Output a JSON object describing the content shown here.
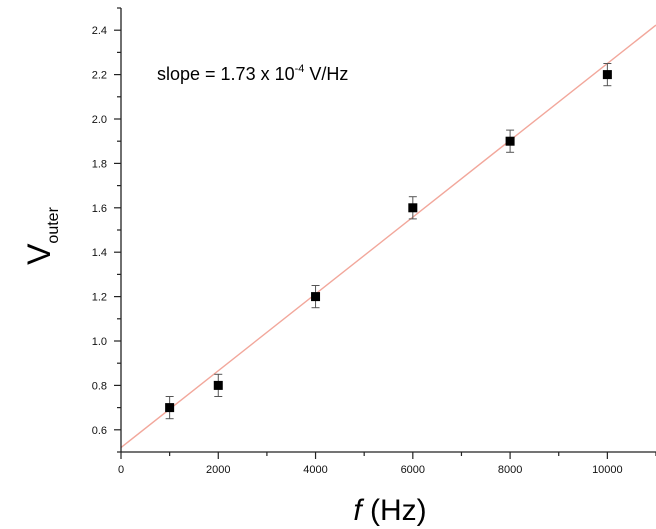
{
  "chart_data": {
    "type": "scatter",
    "x": [
      1000,
      2000,
      4000,
      6000,
      8000,
      10000
    ],
    "y": [
      0.7,
      0.8,
      1.2,
      1.6,
      1.9,
      2.2
    ],
    "y_error": [
      0.05,
      0.05,
      0.05,
      0.05,
      0.05,
      0.05
    ],
    "fit": {
      "slope": 0.000173,
      "intercept": 0.52
    },
    "annotation": {
      "text_main": "slope = 1.73 x 10",
      "superscript": "-4",
      "unit": " V/Hz"
    },
    "ylabel": {
      "main": "V",
      "sub": "outer"
    },
    "xlabel": {
      "italic": "f",
      "rest": " (Hz)"
    },
    "xlim": [
      0,
      11000
    ],
    "ylim": [
      0.5,
      2.5
    ],
    "xticks": [
      0,
      2000,
      4000,
      6000,
      8000,
      10000
    ],
    "xtick_labels": [
      "0",
      "2000",
      "4000",
      "6000",
      "8000",
      "10000"
    ],
    "yticks": [
      0.6,
      0.8,
      1.0,
      1.2,
      1.4,
      1.6,
      1.8,
      2.0,
      2.2,
      2.4
    ],
    "ytick_labels": [
      "0.6",
      "0.8",
      "1.0",
      "1.2",
      "1.4",
      "1.6",
      "1.8",
      "2.0",
      "2.2",
      "2.4"
    ],
    "grid": false,
    "colors": {
      "fit_line": "#f2a79b",
      "marker": "#000000",
      "axis": "#222222"
    }
  }
}
